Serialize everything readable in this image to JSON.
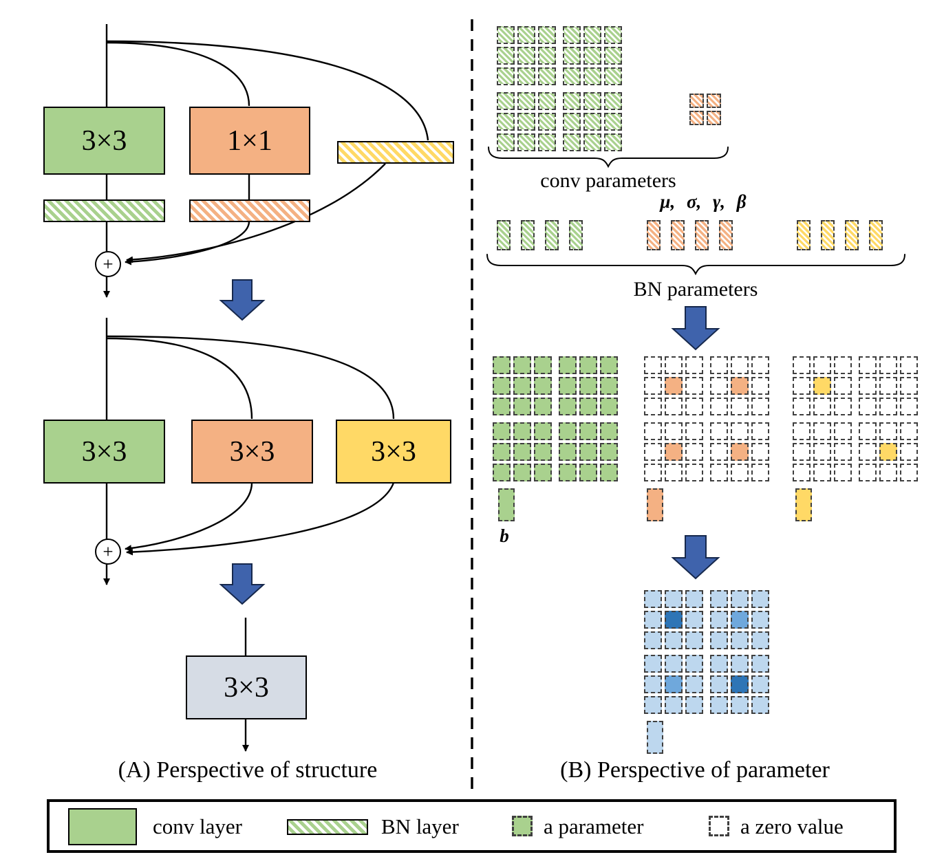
{
  "figure": {
    "panel_a_caption": "(A) Perspective of structure",
    "panel_b_caption": "(B) Perspective of parameter"
  },
  "colors": {
    "green": "#a9d18e",
    "orange": "#f4b183",
    "yellow": "#ffd966",
    "box_blue": "#d6dce5",
    "blue_light": "#bdd7ee",
    "blue_mid": "#6fa8dc",
    "blue_dark": "#2e75b6",
    "arrow_blue": "#3f63ac"
  },
  "panel_a": {
    "block1": {
      "conv3x3": "3×3",
      "conv1x1": "1×1",
      "plus": "+"
    },
    "block2": {
      "conv1": "3×3",
      "conv2": "3×3",
      "conv3": "3×3",
      "plus": "+"
    },
    "block3": {
      "conv": "3×3"
    }
  },
  "panel_b": {
    "conv_params_label": "conv parameters",
    "bn_symbols_label": "μ, σ, γ, β",
    "bn_params_label": "BN parameters",
    "bias_label": "b",
    "grid_specs": {
      "conv_green": {
        "rows": 3,
        "cols": 3,
        "cell": 26,
        "gap": 4,
        "base": "green_hatch"
      },
      "conv_1x1_orange": {
        "rows": 2,
        "cols": 2,
        "cell": 21,
        "gap": 4,
        "base": "orange_hatch"
      },
      "fused_green": {
        "rows": 3,
        "cols": 3,
        "cell": 26,
        "gap": 4,
        "base": "green"
      },
      "fused_orange_center": {
        "rows": 3,
        "cols": 3,
        "cell": 26,
        "gap": 4,
        "base": "white",
        "cells": {
          "1,1": "orange"
        }
      },
      "fused_yellow_center": {
        "rows": 3,
        "cols": 3,
        "cell": 26,
        "gap": 4,
        "base": "white",
        "cells": {
          "1,1": "yellow"
        }
      },
      "fused_zeros": {
        "rows": 3,
        "cols": 3,
        "cell": 26,
        "gap": 4,
        "base": "white"
      },
      "final_dark_center": {
        "rows": 3,
        "cols": 3,
        "cell": 26,
        "gap": 4,
        "base": "blue_light",
        "cells": {
          "1,1": "blue_dark"
        }
      },
      "final_mid_center": {
        "rows": 3,
        "cols": 3,
        "cell": 26,
        "gap": 4,
        "base": "blue_light",
        "cells": {
          "1,1": "blue_mid"
        }
      }
    }
  },
  "legend": {
    "conv_layer": "conv layer",
    "bn_layer": "BN layer",
    "parameter": "a parameter",
    "zero_value": "a zero value"
  }
}
